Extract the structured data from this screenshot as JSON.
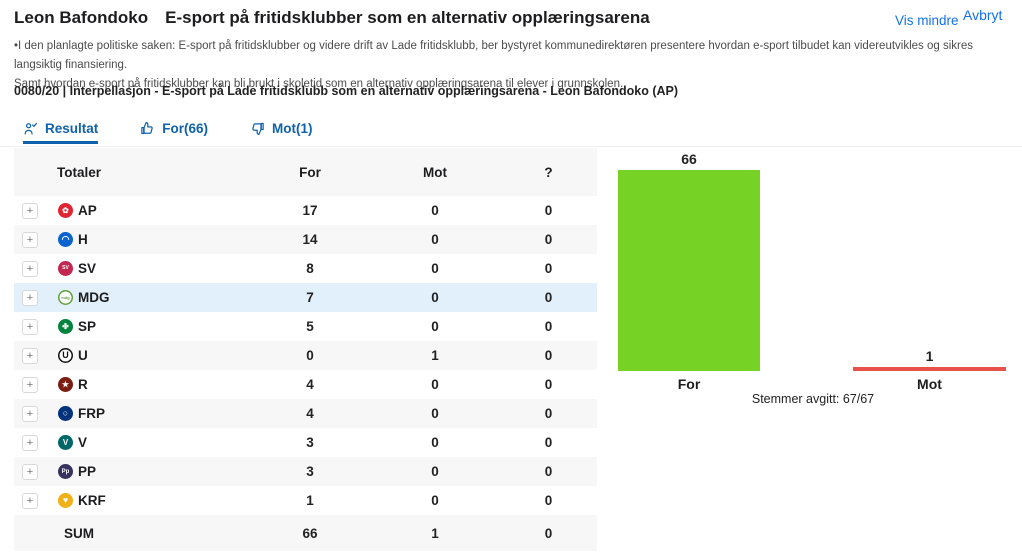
{
  "header": {
    "author": "Leon Bafondoko",
    "title": "E-sport på fritidsklubber som en alternativ opplæringsarena",
    "show_less_label": "Vis mindre",
    "cancel_label": "Avbryt",
    "description_lines": [
      "•I den planlagte politiske saken: E-sport på fritidsklubber og videre drift av Lade fritidsklubb, ber bystyret kommunedirektøren presentere hvordan e-sport tilbudet kan videreutvikles og sikres langsiktig finansiering.",
      "Samt hvordan e-sport på fritidsklubber kan bli brukt i skoletid som en alternativ opplæringsarena til elever i grunnskolen."
    ],
    "case_line": "0080/20 | Interpellasjon - E-sport på Lade fritidsklubb som en alternativ opplæringsarena - Leon Bafondoko (AP)"
  },
  "tabs": {
    "items": [
      {
        "label": "Resultat",
        "icon": "poll-person-icon",
        "active": true
      },
      {
        "label": "For(66)",
        "icon": "thumb-up-icon",
        "active": false
      },
      {
        "label": "Mot(1)",
        "icon": "thumb-down-icon",
        "active": false
      }
    ]
  },
  "table": {
    "headers": {
      "totals": "Totaler",
      "for": "For",
      "against": "Mot",
      "abstain": "?"
    },
    "expand_glyph": "+",
    "rows": [
      {
        "party": "AP",
        "for": 17,
        "against": 0,
        "abstain": 0,
        "icon_name": "party-icon-ap",
        "glyph": "✿",
        "bg": "#e02434",
        "fg": "#ffffff",
        "glyph_size": 8
      },
      {
        "party": "H",
        "for": 14,
        "against": 0,
        "abstain": 0,
        "icon_name": "party-icon-h",
        "glyph": "◠",
        "bg": "#0b63ce",
        "fg": "#ffffff",
        "glyph_size": 9
      },
      {
        "party": "SV",
        "for": 8,
        "against": 0,
        "abstain": 0,
        "icon_name": "party-icon-sv",
        "glyph": "SV",
        "bg": "#c22651",
        "fg": "#ffffff",
        "glyph_size": 5
      },
      {
        "party": "MDG",
        "for": 7,
        "against": 0,
        "abstain": 0,
        "icon_name": "party-icon-mdg",
        "glyph": "mdg",
        "bg": "#ffffff",
        "fg": "#5fa03b",
        "border": "#5fa03b",
        "glyph_size": 4,
        "highlight": true
      },
      {
        "party": "SP",
        "for": 5,
        "against": 0,
        "abstain": 0,
        "icon_name": "party-icon-sp",
        "glyph": "✤",
        "bg": "#00843d",
        "fg": "#ffffff",
        "glyph_size": 8
      },
      {
        "party": "U",
        "for": 0,
        "against": 1,
        "abstain": 0,
        "icon_name": "party-icon-u",
        "glyph": "U",
        "bg": "#ffffff",
        "fg": "#111111",
        "border": "#111111",
        "glyph_size": 9
      },
      {
        "party": "R",
        "for": 4,
        "against": 0,
        "abstain": 0,
        "icon_name": "party-icon-r",
        "glyph": "★",
        "bg": "#7c1d12",
        "fg": "#ffffff",
        "glyph_size": 8
      },
      {
        "party": "FRP",
        "for": 4,
        "against": 0,
        "abstain": 0,
        "icon_name": "party-icon-frp",
        "glyph": "○",
        "bg": "#01327b",
        "fg": "#ffffff",
        "glyph_size": 9
      },
      {
        "party": "V",
        "for": 3,
        "against": 0,
        "abstain": 0,
        "icon_name": "party-icon-v",
        "glyph": "V",
        "bg": "#006666",
        "fg": "#ffffff",
        "glyph_size": 8
      },
      {
        "party": "PP",
        "for": 3,
        "against": 0,
        "abstain": 0,
        "icon_name": "party-icon-pp",
        "glyph": "Pp",
        "bg": "#35335e",
        "fg": "#ffffff",
        "glyph_size": 6
      },
      {
        "party": "KRF",
        "for": 1,
        "against": 0,
        "abstain": 0,
        "icon_name": "party-icon-krf",
        "glyph": "♥",
        "bg": "#f0b018",
        "fg": "#ffffff",
        "glyph_size": 9
      }
    ],
    "sum": {
      "label": "SUM",
      "for": 66,
      "against": 1,
      "abstain": 0
    }
  },
  "chart_data": {
    "type": "bar",
    "categories": [
      "For",
      "Mot"
    ],
    "values": [
      66,
      1
    ],
    "colors": [
      "#77d226",
      "#e8524a"
    ],
    "ylim": [
      0,
      66
    ],
    "footer": "Stemmer avgitt: 67/67"
  }
}
